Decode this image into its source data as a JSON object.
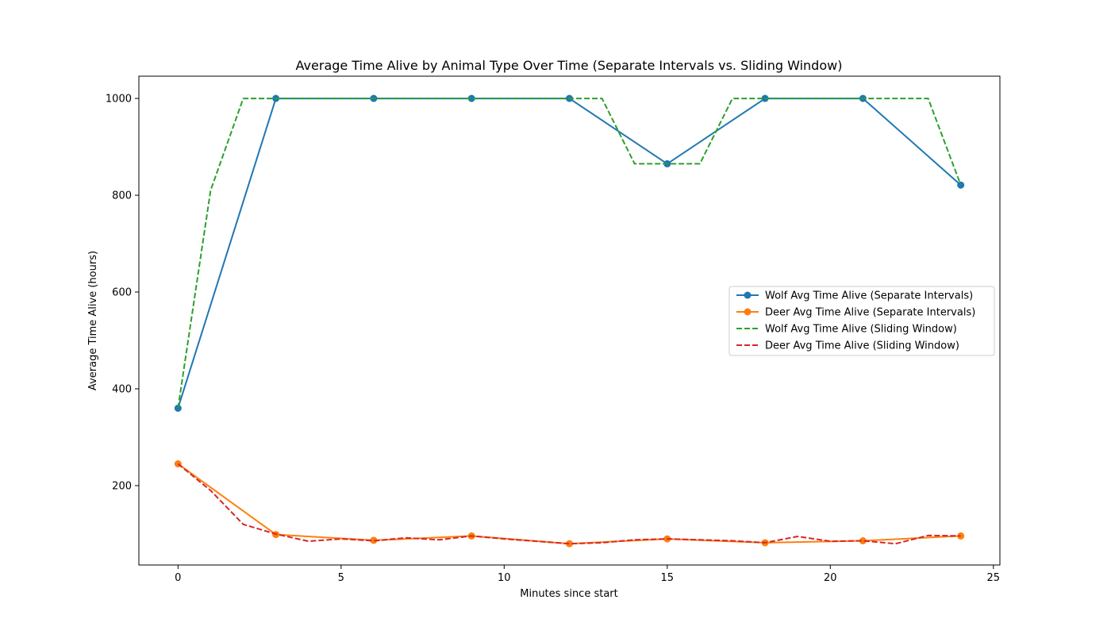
{
  "chart_data": {
    "type": "line",
    "title": "Average Time Alive by Animal Type Over Time (Separate Intervals vs. Sliding Window)",
    "xlabel": "Minutes since start",
    "ylabel": "Average Time Alive (hours)",
    "xlim": [
      -1.2,
      25.2
    ],
    "ylim": [
      36,
      1046
    ],
    "xticks": [
      0,
      5,
      10,
      15,
      20,
      25
    ],
    "yticks": [
      200,
      400,
      600,
      800,
      1000
    ],
    "grid": false,
    "legend_position": "center-right",
    "series": [
      {
        "name": "Wolf Avg Time Alive (Separate Intervals)",
        "color": "#1f77b4",
        "style": "solid",
        "marker": "circle",
        "x": [
          0,
          3,
          6,
          9,
          12,
          15,
          18,
          21,
          24
        ],
        "y": [
          360,
          1000,
          1000,
          1000,
          1000,
          865,
          1000,
          1000,
          821
        ]
      },
      {
        "name": "Deer Avg Time Alive (Separate Intervals)",
        "color": "#ff7f0e",
        "style": "solid",
        "marker": "circle",
        "x": [
          0,
          3,
          6,
          9,
          12,
          15,
          18,
          21,
          24
        ],
        "y": [
          245,
          99,
          87,
          96,
          80,
          90,
          82,
          86,
          96
        ]
      },
      {
        "name": "Wolf Avg Time Alive (Sliding Window)",
        "color": "#2ca02c",
        "style": "dashed",
        "marker": "none",
        "x": [
          0,
          1,
          2,
          3,
          4,
          5,
          6,
          7,
          8,
          9,
          10,
          11,
          12,
          13,
          14,
          15,
          16,
          17,
          18,
          19,
          20,
          21,
          22,
          23,
          24
        ],
        "y": [
          360,
          810,
          1000,
          1000,
          1000,
          1000,
          1000,
          1000,
          1000,
          1000,
          1000,
          1000,
          1000,
          1000,
          865,
          865,
          865,
          1000,
          1000,
          1000,
          1000,
          1000,
          1000,
          1000,
          821
        ]
      },
      {
        "name": "Deer Avg Time Alive (Sliding Window)",
        "color": "#d62728",
        "style": "dashed",
        "marker": "none",
        "x": [
          0,
          1,
          2,
          3,
          4,
          5,
          6,
          7,
          8,
          9,
          10,
          11,
          12,
          13,
          14,
          15,
          16,
          17,
          18,
          19,
          20,
          21,
          22,
          23,
          24
        ],
        "y": [
          245,
          190,
          120,
          100,
          85,
          90,
          86,
          92,
          88,
          96,
          90,
          85,
          80,
          82,
          88,
          90,
          88,
          86,
          82,
          95,
          85,
          86,
          80,
          97,
          96
        ]
      }
    ]
  }
}
